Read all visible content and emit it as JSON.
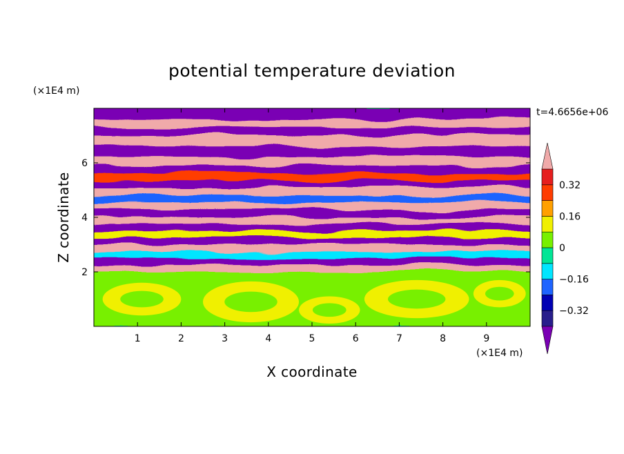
{
  "chart_data": {
    "type": "heatmap",
    "title": "potential temperature deviation",
    "xlabel": "X coordinate",
    "ylabel": "Z coordinate",
    "x_unit": "(×1E4 m)",
    "y_unit": "(×1E4 m)",
    "time_label": "t=4.6656e+06",
    "xlim": [
      0,
      10
    ],
    "ylim": [
      0,
      8
    ],
    "x_ticks": [
      1,
      2,
      3,
      4,
      5,
      6,
      7,
      8,
      9
    ],
    "y_ticks": [
      2,
      4,
      6
    ],
    "colorbar": {
      "levels": [
        -0.4,
        -0.32,
        -0.24,
        -0.16,
        -0.08,
        0,
        0.08,
        0.16,
        0.24,
        0.32,
        0.4
      ],
      "labels": [
        "0.32",
        "0.16",
        "0",
        "−0.16",
        "−0.32"
      ],
      "label_values": [
        0.32,
        0.16,
        0,
        -0.16,
        -0.32
      ],
      "colors": [
        "#7a00b4",
        "#281e8c",
        "#0000b4",
        "#1e64ff",
        "#00e6ff",
        "#00e696",
        "#78f000",
        "#f0f000",
        "#ffa000",
        "#ff3c00",
        "#e61e1e",
        "#f0aaaa"
      ],
      "extend": "both"
    },
    "bands": [
      {
        "z": [
          7.55,
          8.0
        ],
        "value": -0.45
      },
      {
        "z": [
          7.25,
          7.55
        ],
        "value": 0.45
      },
      {
        "z": [
          6.95,
          7.25
        ],
        "value": -0.45
      },
      {
        "z": [
          6.55,
          6.95
        ],
        "value": 0.45
      },
      {
        "z": [
          6.2,
          6.55
        ],
        "value": -0.45
      },
      {
        "z": [
          5.85,
          6.2
        ],
        "value": 0.45
      },
      {
        "z": [
          5.55,
          5.85
        ],
        "value": -0.45
      },
      {
        "z": [
          5.3,
          5.55
        ],
        "value": 0.3
      },
      {
        "z": [
          5.05,
          5.3
        ],
        "value": -0.45
      },
      {
        "z": [
          4.75,
          5.05
        ],
        "value": 0.45
      },
      {
        "z": [
          4.5,
          4.75
        ],
        "value": -0.2
      },
      {
        "z": [
          4.25,
          4.5
        ],
        "value": 0.45
      },
      {
        "z": [
          3.95,
          4.25
        ],
        "value": -0.45
      },
      {
        "z": [
          3.7,
          3.95
        ],
        "value": 0.45
      },
      {
        "z": [
          3.45,
          3.7
        ],
        "value": -0.45
      },
      {
        "z": [
          3.2,
          3.45
        ],
        "value": 0.1
      },
      {
        "z": [
          2.95,
          3.2
        ],
        "value": -0.45
      },
      {
        "z": [
          2.7,
          2.95
        ],
        "value": 0.45
      },
      {
        "z": [
          2.45,
          2.7
        ],
        "value": -0.1
      },
      {
        "z": [
          2.2,
          2.45
        ],
        "value": -0.45
      },
      {
        "z": [
          1.95,
          2.2
        ],
        "value": 0.45
      },
      {
        "z": [
          0.0,
          1.95
        ],
        "value": 0.0
      }
    ],
    "lower_blobs": [
      {
        "x": 1.1,
        "z": 1.0,
        "rx": 0.9,
        "rz": 0.6,
        "value": 0.08
      },
      {
        "x": 3.6,
        "z": 0.9,
        "rx": 1.1,
        "rz": 0.75,
        "value": 0.08
      },
      {
        "x": 5.4,
        "z": 0.6,
        "rx": 0.7,
        "rz": 0.5,
        "value": 0.08
      },
      {
        "x": 7.4,
        "z": 1.0,
        "rx": 1.2,
        "rz": 0.7,
        "value": 0.08
      },
      {
        "x": 9.3,
        "z": 1.2,
        "rx": 0.6,
        "rz": 0.5,
        "value": 0.08
      }
    ]
  }
}
